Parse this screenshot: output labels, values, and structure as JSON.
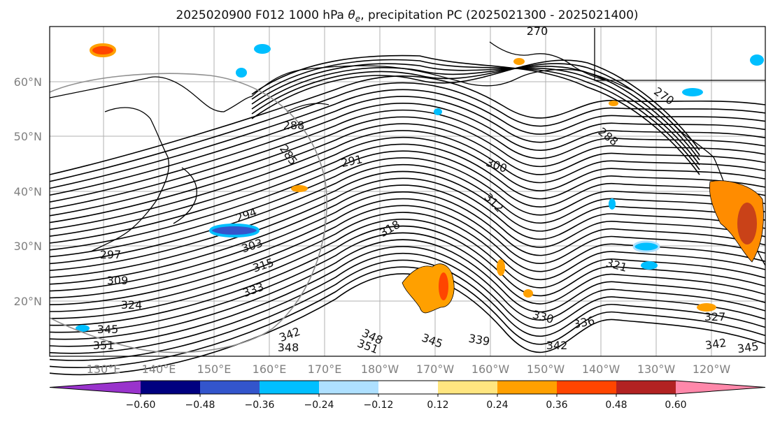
{
  "title": {
    "prefix": "2025020900 F012 1000 hPa ",
    "symbol": "θ",
    "symbol_sub": "e",
    "suffix": ", precipitation PC (2025021300 - 2025021400)"
  },
  "map": {
    "lat_labels": [
      "60°N",
      "50°N",
      "40°N",
      "30°N",
      "20°N"
    ],
    "lon_labels": [
      "130°E",
      "140°E",
      "150°E",
      "160°E",
      "170°E",
      "180°W",
      "170°W",
      "160°W",
      "150°W",
      "140°W",
      "130°W",
      "120°W"
    ],
    "contour_labels": [
      "270",
      "285",
      "288",
      "291",
      "294",
      "297",
      "300",
      "303",
      "309",
      "312",
      "315",
      "318",
      "321",
      "324",
      "327",
      "330",
      "333",
      "336",
      "339",
      "342",
      "345",
      "348",
      "351"
    ]
  },
  "colorbar": {
    "ticks": [
      "−0.60",
      "−0.48",
      "−0.36",
      "−0.24",
      "−0.12",
      "0.12",
      "0.24",
      "0.36",
      "0.48",
      "0.60"
    ],
    "colors": [
      "#9933cc",
      "#000080",
      "#3355cc",
      "#00bfff",
      "#aee0ff",
      "#ffffff",
      "#ffe680",
      "#ffa000",
      "#ff4500",
      "#b22222",
      "#ff88aa"
    ]
  }
}
